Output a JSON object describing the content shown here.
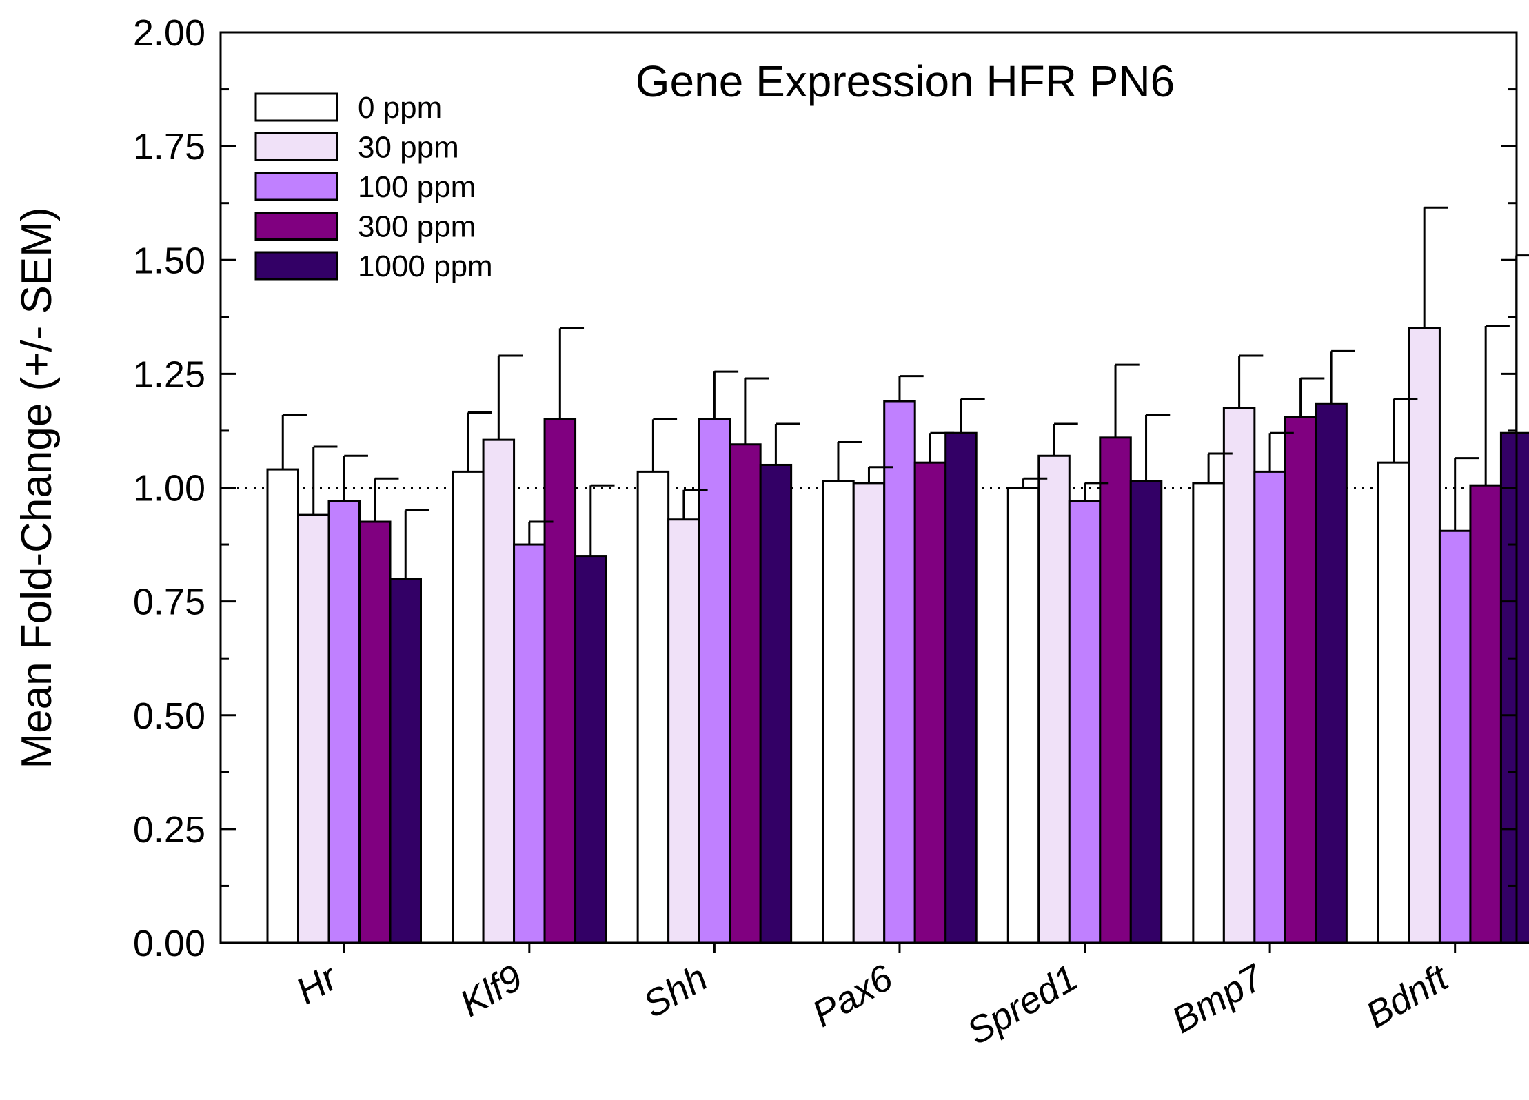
{
  "chart_data": {
    "type": "bar",
    "title": "Gene Expression HFR PN6",
    "xlabel": "",
    "ylabel": "Mean Fold-Change (+/- SEM)",
    "ylim": [
      0,
      2
    ],
    "yticks": [
      "0.00",
      "0.25",
      "0.50",
      "0.75",
      "1.00",
      "1.25",
      "1.50",
      "1.75",
      "2.00"
    ],
    "reference_line": 1.0,
    "legend_position": "top-left",
    "categories": [
      "Hr",
      "Klf9",
      "Shh",
      "Pax6",
      "Spred1",
      "Bmp7",
      "Bdnft"
    ],
    "series": [
      {
        "name": "0 ppm",
        "color": "#ffffff",
        "values": [
          1.04,
          1.035,
          1.035,
          1.015,
          1.0,
          1.01,
          1.055
        ],
        "errors": [
          0.12,
          0.13,
          0.115,
          0.085,
          0.02,
          0.065,
          0.14
        ]
      },
      {
        "name": "30 ppm",
        "color": "#f0e1f8",
        "values": [
          0.94,
          1.105,
          0.93,
          1.01,
          1.07,
          1.175,
          1.35
        ],
        "errors": [
          0.15,
          0.185,
          0.065,
          0.035,
          0.07,
          0.115,
          0.265
        ]
      },
      {
        "name": "100 ppm",
        "color": "#c080ff",
        "values": [
          0.97,
          0.875,
          1.15,
          1.19,
          0.97,
          1.035,
          0.905
        ],
        "errors": [
          0.1,
          0.05,
          0.105,
          0.055,
          0.04,
          0.085,
          0.16
        ]
      },
      {
        "name": "300 ppm",
        "color": "#800080",
        "values": [
          0.925,
          1.15,
          1.095,
          1.055,
          1.11,
          1.155,
          1.005
        ],
        "errors": [
          0.095,
          0.2,
          0.145,
          0.065,
          0.16,
          0.085,
          0.35
        ]
      },
      {
        "name": "1000 ppm",
        "color": "#330066",
        "values": [
          0.8,
          0.85,
          1.05,
          1.12,
          1.015,
          1.185,
          1.12
        ],
        "errors": [
          0.15,
          0.155,
          0.09,
          0.075,
          0.145,
          0.115,
          0.39
        ]
      }
    ]
  }
}
